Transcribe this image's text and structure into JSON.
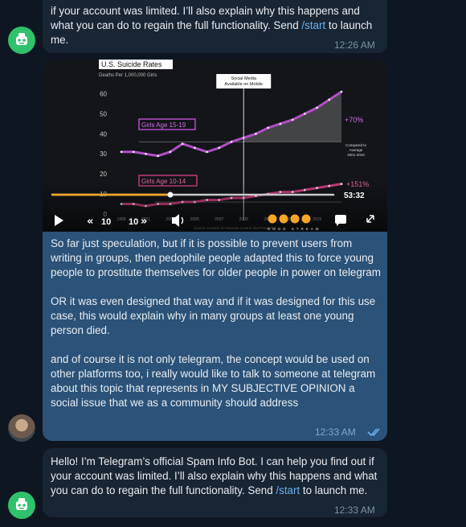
{
  "messages": [
    {
      "id": "bot-msg-top",
      "text_before": "if your account was limited. I’ll also explain why this happens and what you can do to regain the full functionality. Send ",
      "link": "/start",
      "text_after": " to launch me.",
      "time": "12:26 AM"
    },
    {
      "id": "user-msg",
      "paragraphs": [
        "So far just speculation, but if it is possible to prevent users from writing in groups, then pedophile people adapted this to force young people to prostitute themselves for older people in power on telegram",
        "OR it was even designed that way and if it was designed for this use case, this would explain why in many groups at least one young person died.",
        "and of course it is not only telegram, the concept would be used on other platforms too, i really would like to talk to someone at telegram about this topic that represents in MY SUBJECTIVE OPINION a social issue that we as a community should address"
      ],
      "time": "12:33 AM"
    },
    {
      "id": "bot-msg-bottom",
      "text_before": "Hello! I’m Telegram’s official Spam Info Bot. I can help you find out if your account was limited. I’ll also explain why this happens and what you can do to regain the full functionality. Send ",
      "link": "/start",
      "text_after": " to launch me.",
      "time": "12:33 AM"
    }
  ],
  "video": {
    "chart_title": "U.S. Suicide Rates",
    "chart_subtitle": "Deaths Per 1,000,000 Girls",
    "annotation_line1": "Social Media",
    "annotation_line2": "Available on Mobile",
    "label_15_19": "Girls Age 15-19",
    "label_10_14": "Girls Age 10-14",
    "pct_15_19": "+70%",
    "pct_10_14": "+151%",
    "compared_line1": "Compared to",
    "compared_line2": "Average",
    "compared_line3": "2001-2010",
    "source": "Source: Centers for Disease Control and Prevention",
    "duration": "53:32",
    "progress_fraction": 0.42,
    "brand": "DOOD STREAM",
    "rewind_label": "10",
    "forward_label": "10",
    "chart_data": {
      "type": "line",
      "title": "U.S. Suicide Rates",
      "ylabel": "Deaths Per 1,000,000 Girls",
      "y_ticks": [
        0,
        10,
        20,
        30,
        40,
        50,
        60
      ],
      "x_ticks": [
        "1999",
        "2001",
        "2003",
        "2005",
        "2007",
        "2009",
        "2011",
        "2013",
        "2015",
        "2017"
      ],
      "ylim": [
        0,
        65
      ],
      "series": [
        {
          "name": "Girls Age 15-19",
          "values": [
            31,
            31,
            30,
            29,
            31,
            35,
            33,
            31,
            33,
            36,
            38,
            40,
            43,
            45,
            47,
            50,
            53,
            57,
            61
          ]
        },
        {
          "name": "Girls Age 10-14",
          "values": [
            5,
            5,
            4,
            5,
            5,
            6,
            6,
            7,
            7,
            8,
            8,
            9,
            10,
            11,
            11,
            12,
            13,
            14,
            15
          ]
        }
      ]
    }
  }
}
